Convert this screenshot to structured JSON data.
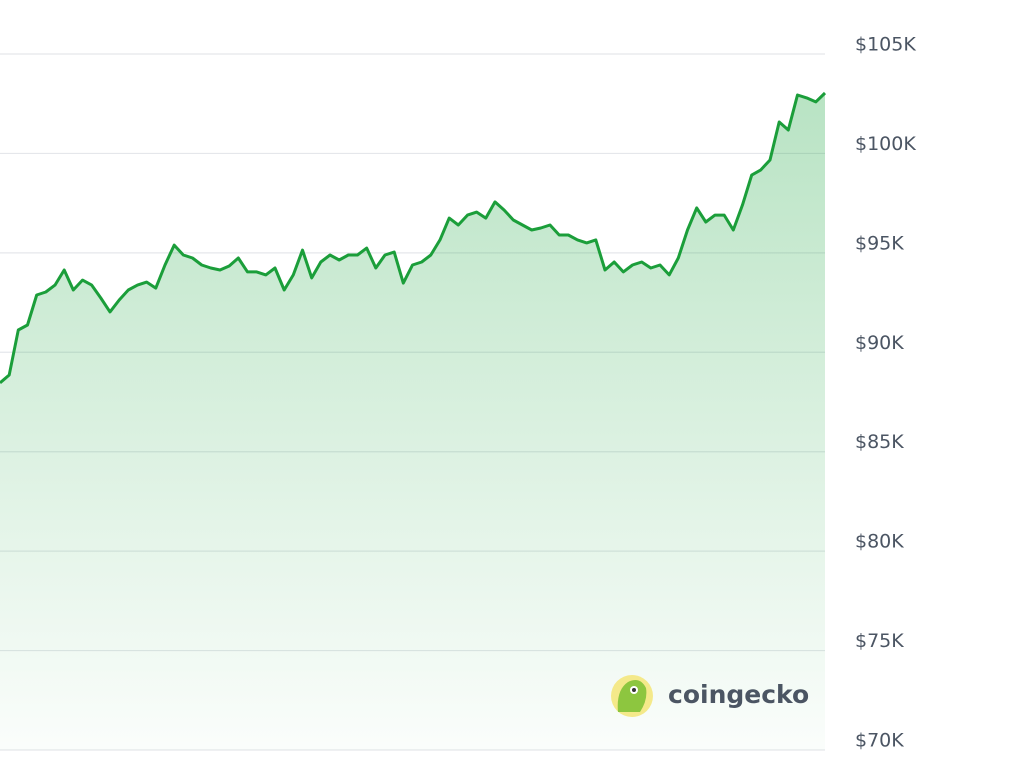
{
  "chart_data": {
    "type": "area",
    "watermark": "coingecko",
    "color": "#1b9e3a",
    "grid": true,
    "ylim": [
      70000,
      105000
    ],
    "yticks": [
      {
        "value": 70000,
        "label": "$70K"
      },
      {
        "value": 75000,
        "label": "$75K"
      },
      {
        "value": 80000,
        "label": "$80K"
      },
      {
        "value": 85000,
        "label": "$85K"
      },
      {
        "value": 90000,
        "label": "$90K"
      },
      {
        "value": 95000,
        "label": "$95K"
      },
      {
        "value": 100000,
        "label": "$100K"
      },
      {
        "value": 105000,
        "label": "$105K"
      }
    ],
    "values": [
      88460,
      88860,
      91120,
      91370,
      92880,
      93030,
      93380,
      94140,
      93130,
      93630,
      93380,
      92730,
      92030,
      92630,
      93130,
      93380,
      93530,
      93230,
      94390,
      95390,
      94890,
      94740,
      94390,
      94240,
      94140,
      94340,
      94740,
      94040,
      94040,
      93890,
      94240,
      93130,
      93890,
      95140,
      93740,
      94540,
      94890,
      94640,
      94890,
      94890,
      95240,
      94240,
      94890,
      95040,
      93480,
      94390,
      94540,
      94890,
      95650,
      96750,
      96400,
      96900,
      97050,
      96750,
      97560,
      97150,
      96650,
      96400,
      96150,
      96250,
      96400,
      95900,
      95900,
      95650,
      95500,
      95650,
      94140,
      94540,
      94040,
      94390,
      94540,
      94240,
      94390,
      93890,
      94740,
      96150,
      97260,
      96550,
      96900,
      96900,
      96150,
      97410,
      98910,
      99170,
      99670,
      101580,
      101180,
      102940,
      102790,
      102590,
      103040
    ]
  }
}
